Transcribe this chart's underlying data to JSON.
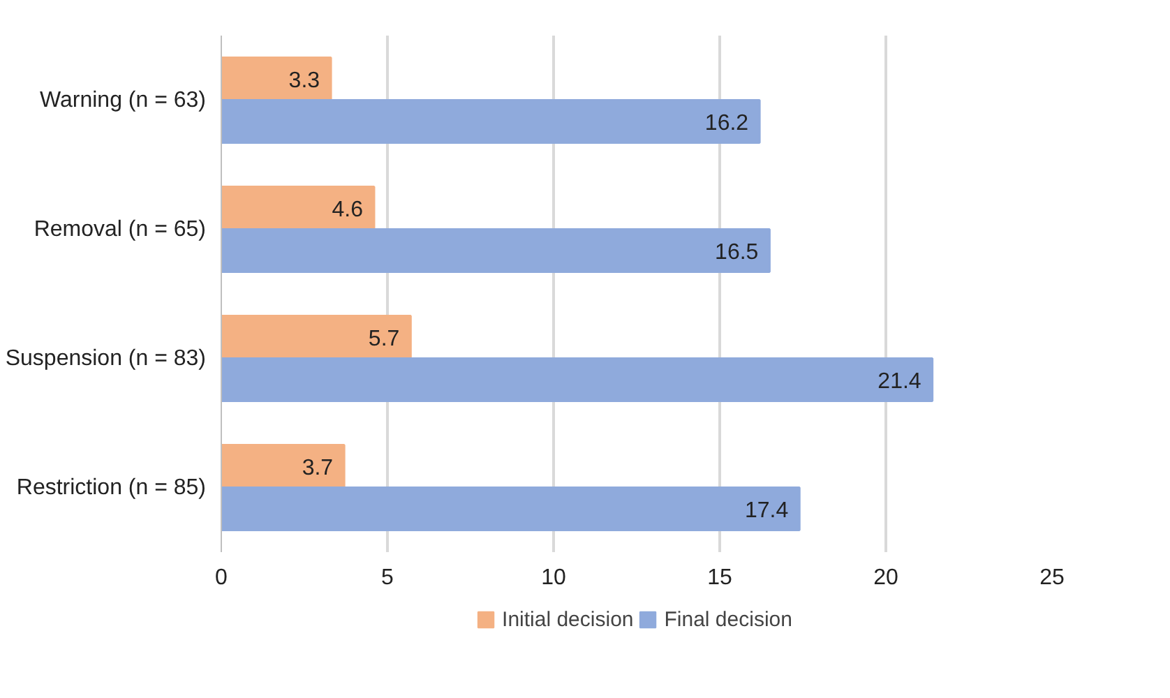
{
  "chart_data": {
    "type": "bar",
    "orientation": "horizontal",
    "categories": [
      "Warning (n = 63)",
      "Removal (n = 65)",
      "Suspension (n = 83)",
      "Restriction (n = 85)"
    ],
    "series": [
      {
        "name": "Initial decision",
        "color": "#f4b183",
        "values": [
          3.3,
          4.6,
          5.7,
          3.7
        ]
      },
      {
        "name": "Final decision",
        "color": "#8faadc",
        "values": [
          16.2,
          16.5,
          21.4,
          17.4
        ]
      }
    ],
    "xlim": [
      0,
      25
    ],
    "xticks": [
      0,
      5,
      10,
      15,
      20,
      25
    ],
    "grid": "x",
    "legend": "bottom",
    "data_labels": true
  }
}
